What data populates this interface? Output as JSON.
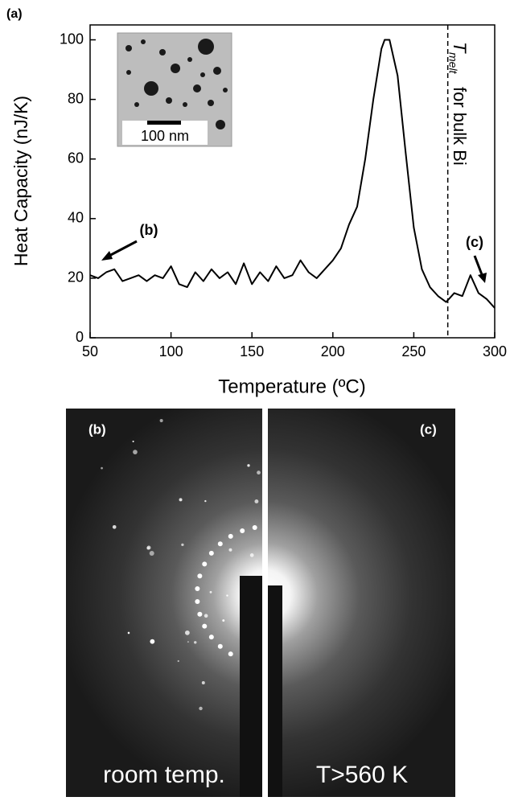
{
  "chart_data": {
    "type": "line",
    "panel_label": "(a)",
    "x_label": "Temperature (ºC)",
    "y_label": "Heat Capacity (nJ/K)",
    "x": [
      50,
      55,
      60,
      65,
      70,
      75,
      80,
      85,
      90,
      95,
      100,
      105,
      110,
      115,
      120,
      125,
      130,
      135,
      140,
      145,
      150,
      155,
      160,
      165,
      170,
      175,
      180,
      185,
      190,
      195,
      200,
      205,
      210,
      215,
      220,
      225,
      230,
      232,
      235,
      240,
      245,
      250,
      255,
      260,
      265,
      270,
      275,
      280,
      285,
      290,
      295,
      300
    ],
    "series": [
      {
        "color": "#000000",
        "values": [
          21,
          20,
          22,
          23,
          19,
          20,
          21,
          19,
          21,
          20,
          24,
          18,
          17,
          22,
          19,
          23,
          20,
          22,
          18,
          25,
          18,
          22,
          19,
          24,
          20,
          21,
          26,
          22,
          20,
          23,
          26,
          30,
          38,
          44,
          60,
          80,
          97,
          100,
          100,
          88,
          62,
          37,
          23,
          17,
          14,
          12,
          15,
          14,
          21,
          15,
          13,
          10
        ]
      }
    ],
    "xlim": [
      50,
      300
    ],
    "ylim": [
      0,
      105
    ],
    "xticks": [
      50,
      100,
      150,
      200,
      250,
      300
    ],
    "yticks": [
      0,
      20,
      40,
      60,
      80,
      100
    ],
    "annotations": {
      "b": "(b)",
      "c": "(c)",
      "melt_symbol": "T",
      "melt_subscript": "melt",
      "melt_text": "for bulk Bi",
      "melt_line_x": 271
    },
    "inset": {
      "scale_bar": "100 nm"
    }
  },
  "images": {
    "left": {
      "label": "(b)",
      "caption": "room temp."
    },
    "right": {
      "label": "(c)",
      "caption": "T>560 K"
    }
  }
}
